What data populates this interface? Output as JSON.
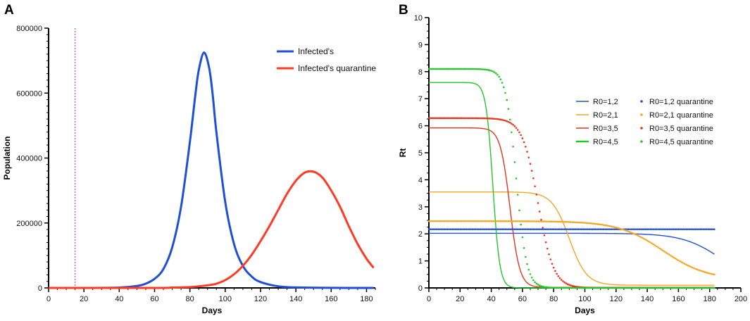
{
  "chart_data": [
    {
      "panel": "A",
      "type": "line",
      "xlabel": "Days",
      "ylabel": "Population",
      "xlim": [
        0,
        185
      ],
      "ylim": [
        0,
        800000
      ],
      "xticks": [
        0,
        20,
        40,
        60,
        80,
        100,
        120,
        140,
        160,
        180
      ],
      "yticks": [
        0,
        200000,
        400000,
        600000,
        800000
      ],
      "ytick_labels": [
        "0",
        "200000",
        "400000",
        "600000",
        "800000"
      ],
      "vline": {
        "x": 15,
        "color": "#e040e0"
      },
      "legend": "top-right",
      "series": [
        {
          "name": "Infected's",
          "color": "#1f4fd6",
          "x": [
            0,
            20,
            40,
            50,
            55,
            60,
            65,
            70,
            75,
            80,
            83,
            85,
            88,
            91,
            93,
            95,
            100,
            105,
            110,
            115,
            120,
            130,
            140,
            160,
            184
          ],
          "y": [
            0,
            0,
            1000,
            6000,
            13000,
            28000,
            58000,
            125000,
            250000,
            450000,
            590000,
            670000,
            725000,
            675000,
            590000,
            480000,
            265000,
            135000,
            68000,
            35000,
            18000,
            5000,
            1500,
            200,
            0
          ]
        },
        {
          "name": "Infected's quarantine",
          "color": "#ff3b25",
          "x": [
            0,
            60,
            70,
            80,
            90,
            95,
            100,
            105,
            110,
            115,
            120,
            125,
            130,
            135,
            140,
            145,
            150,
            155,
            160,
            165,
            170,
            175,
            180,
            184
          ],
          "y": [
            0,
            0,
            1000,
            2500,
            8000,
            13000,
            24000,
            42000,
            68000,
            102000,
            144000,
            190000,
            240000,
            290000,
            330000,
            355000,
            358000,
            340000,
            300000,
            250000,
            190000,
            135000,
            90000,
            62000
          ]
        }
      ]
    },
    {
      "panel": "B",
      "type": "line",
      "xlabel": "Days",
      "ylabel": "Rt",
      "xlim": [
        0,
        200
      ],
      "ylim": [
        0,
        10
      ],
      "xticks": [
        0,
        20,
        40,
        60,
        80,
        100,
        120,
        140,
        160,
        180,
        200
      ],
      "yticks": [
        0,
        1,
        2,
        3,
        4,
        5,
        6,
        7,
        8,
        9,
        10
      ],
      "legend": "right",
      "series": [
        {
          "name": "R0=1,2",
          "color": "#1f4fd6",
          "style": "solid",
          "plateau": 2.02,
          "mid": 188,
          "k": 0.08,
          "end": 0.1
        },
        {
          "name": "R0=2,1",
          "color": "#f5a623",
          "style": "solid",
          "plateau": 3.55,
          "mid": 90,
          "k": 0.18,
          "end": 0.1
        },
        {
          "name": "R0=3,5",
          "color": "#e8321e",
          "style": "solid",
          "plateau": 5.92,
          "mid": 52,
          "k": 0.32,
          "end": 0.02
        },
        {
          "name": "R0=4,5",
          "color": "#22c72a",
          "style": "solid",
          "plateau": 7.6,
          "mid": 41,
          "k": 0.45,
          "end": 0.0
        },
        {
          "name": "R0=1,2 quarantine",
          "color": "#1f4fd6",
          "style": "dotted",
          "plateau": 2.17,
          "mid": 400,
          "k": 0.05,
          "end": 0.1
        },
        {
          "name": "R0=2,1 quarantine",
          "color": "#f5a623",
          "style": "dotted",
          "plateau": 2.47,
          "mid": 150,
          "k": 0.07,
          "end": 0.3
        },
        {
          "name": "R0=3,5 quarantine",
          "color": "#e8321e",
          "style": "dotted",
          "plateau": 6.28,
          "mid": 70,
          "k": 0.2,
          "end": 0.0
        },
        {
          "name": "R0=4,5 quarantine",
          "color": "#22c72a",
          "style": "dotted",
          "plateau": 8.1,
          "mid": 56,
          "k": 0.3,
          "end": 0.0
        }
      ]
    }
  ]
}
